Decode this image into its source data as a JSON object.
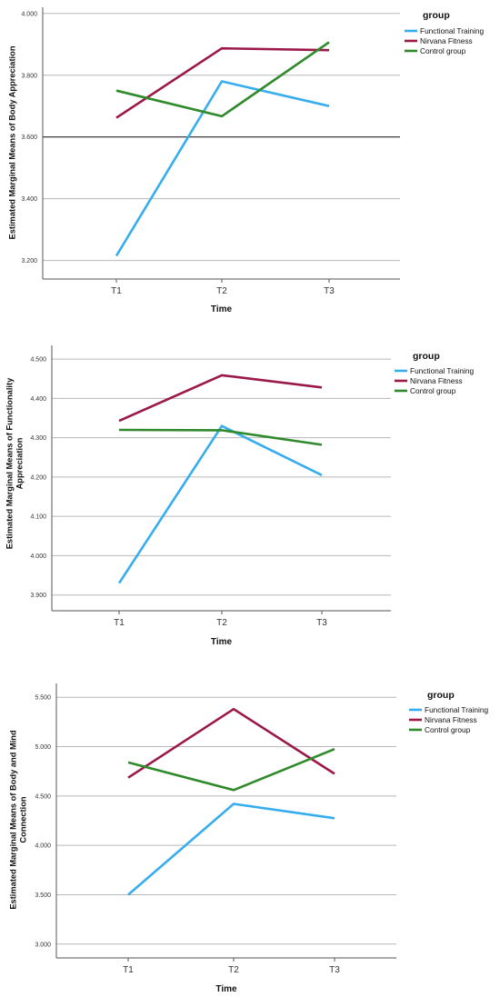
{
  "colors": {
    "functional_training": "#36ADEE",
    "nirvana_fitness": "#9B1849",
    "control_group": "#2E8A2A",
    "gridline": "#B8B8B8",
    "axis": "#555555"
  },
  "chart_data": [
    {
      "type": "line",
      "ylabel": "Estimated Marginal Means of Body Appreciation",
      "xlabel": "Time",
      "categories": [
        "T1",
        "T2",
        "T3"
      ],
      "ylim": [
        3.14,
        4.02
      ],
      "yticks": [
        "3.200",
        "3.400",
        "3.600",
        "3.800",
        "4.000"
      ],
      "ytick_values": [
        3.2,
        3.4,
        3.6,
        3.8,
        4.0
      ],
      "reference_line": 3.6,
      "grid": true,
      "legend": {
        "title": "group",
        "position": "top-right"
      },
      "series": [
        {
          "name": "Functional Training",
          "color": "#36ADEE",
          "values": [
            3.215,
            3.78,
            3.7
          ]
        },
        {
          "name": "Nirvana Fitness",
          "color": "#9B1849",
          "values": [
            3.662,
            3.887,
            3.881
          ]
        },
        {
          "name": "Control group",
          "color": "#2E8A2A",
          "values": [
            3.75,
            3.667,
            3.907
          ]
        }
      ]
    },
    {
      "type": "line",
      "ylabel_lines": [
        "Estimated Marginal Means of Functionality",
        "Appreciation"
      ],
      "xlabel": "Time",
      "categories": [
        "T1",
        "T2",
        "T3"
      ],
      "ylim": [
        3.86,
        4.535
      ],
      "yticks": [
        "3.900",
        "4.000",
        "4.100",
        "4.200",
        "4.300",
        "4.400",
        "4.500"
      ],
      "ytick_values": [
        3.9,
        4.0,
        4.1,
        4.2,
        4.3,
        4.4,
        4.5
      ],
      "grid": true,
      "legend": {
        "title": "group",
        "position": "top-right"
      },
      "series": [
        {
          "name": "Functional Training",
          "color": "#36ADEE",
          "values": [
            3.93,
            4.33,
            4.205
          ]
        },
        {
          "name": "Nirvana Fitness",
          "color": "#9B1849",
          "values": [
            4.343,
            4.459,
            4.428
          ]
        },
        {
          "name": "Control group",
          "color": "#2E8A2A",
          "values": [
            4.32,
            4.319,
            4.282
          ]
        }
      ]
    },
    {
      "type": "line",
      "ylabel_lines": [
        "Estimated Marginal Means of Body and Mind",
        "Connection"
      ],
      "xlabel": "Time",
      "categories": [
        "T1",
        "T2",
        "T3"
      ],
      "ylim": [
        2.86,
        5.64
      ],
      "yticks": [
        "3.000",
        "3.500",
        "4.000",
        "4.500",
        "5.000",
        "5.500"
      ],
      "ytick_values": [
        3.0,
        3.5,
        4.0,
        4.5,
        5.0,
        5.5
      ],
      "grid": true,
      "legend": {
        "title": "group",
        "position": "top-right"
      },
      "series": [
        {
          "name": "Functional Training",
          "color": "#36ADEE",
          "values": [
            3.5,
            4.42,
            4.275
          ]
        },
        {
          "name": "Nirvana Fitness",
          "color": "#9B1849",
          "values": [
            4.685,
            5.38,
            4.725
          ]
        },
        {
          "name": "Control group",
          "color": "#2E8A2A",
          "values": [
            4.84,
            4.56,
            4.975
          ]
        }
      ]
    }
  ]
}
